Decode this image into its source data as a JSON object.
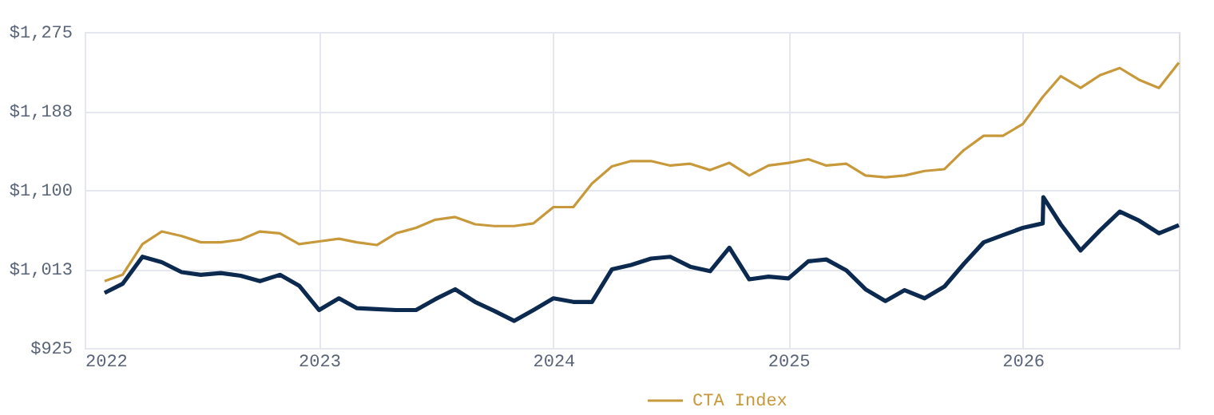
{
  "chart_data": {
    "type": "line",
    "xlim": [
      "2022",
      "2026-09"
    ],
    "xticks": [
      "2022",
      "2023",
      "2024",
      "2025",
      "2026"
    ],
    "ylim": [
      925,
      1275
    ],
    "yticks": [
      {
        "value": 925,
        "label": "$925"
      },
      {
        "value": 1012.5,
        "label": "$1,013"
      },
      {
        "value": 1100,
        "label": "$1,100"
      },
      {
        "value": 1187.5,
        "label": "$1,188"
      },
      {
        "value": 1275,
        "label": "$1,275"
      }
    ],
    "grid": true,
    "legend": "bottom",
    "line_style": "solid",
    "marker": "none",
    "series": [
      {
        "color": "#0c2a50",
        "x": [
          "2022-02",
          "2022-03",
          "2022-04",
          "2022-05",
          "2022-06",
          "2022-07",
          "2022-08",
          "2022-09",
          "2022-10",
          "2022-11",
          "2022-12",
          "2023-01",
          "2023-02",
          "2023-03",
          "2023-04",
          "2023-05",
          "2023-06",
          "2023-07",
          "2023-08",
          "2023-09",
          "2023-10",
          "2023-11",
          "2023-12",
          "2024-01",
          "2024-02",
          "2024-03",
          "2024-04",
          "2024-05",
          "2024-06",
          "2024-07",
          "2024-08",
          "2024-09",
          "2024-10",
          "2024-11",
          "2024-12",
          "2025-01",
          "2025-02",
          "2025-03",
          "2025-04",
          "2025-05",
          "2025-06",
          "2025-07",
          "2025-08",
          "2025-09",
          "2025-10",
          "2025-11",
          "2025-12",
          "2026-01",
          "2026-02",
          "2026-02-02",
          "2026-03",
          "2026-04",
          "2026-05",
          "2026-06",
          "2026-07",
          "2026-08",
          "2026-09"
        ],
        "values": [
          986,
          996,
          1026,
          1020,
          1009,
          1006,
          1008,
          1005,
          999,
          1006,
          994,
          967,
          980,
          969,
          968,
          967,
          967,
          979,
          990,
          976,
          966,
          955,
          967,
          980,
          976,
          976,
          1012,
          1017,
          1024,
          1026,
          1015,
          1010,
          1036,
          1001,
          1004,
          1002,
          1021,
          1023,
          1011,
          990,
          977,
          989,
          980,
          993,
          1018,
          1042,
          1050,
          1058,
          1063,
          1092,
          1062,
          1033,
          1055,
          1076,
          1066,
          1052,
          1061
        ]
      },
      {
        "name": "CTA Index",
        "color": "#c8993a",
        "x": [
          "2022-02",
          "2022-03",
          "2022-04",
          "2022-05",
          "2022-06",
          "2022-07",
          "2022-08",
          "2022-09",
          "2022-10",
          "2022-11",
          "2022-12",
          "2023-01",
          "2023-02",
          "2023-03",
          "2023-04",
          "2023-05",
          "2023-06",
          "2023-07",
          "2023-08",
          "2023-09",
          "2023-10",
          "2023-11",
          "2023-12",
          "2024-01",
          "2024-02",
          "2024-03",
          "2024-04",
          "2024-05",
          "2024-06",
          "2024-07",
          "2024-08",
          "2024-09",
          "2024-10",
          "2024-11",
          "2024-12",
          "2025-01",
          "2025-02",
          "2025-03",
          "2025-04",
          "2025-05",
          "2025-06",
          "2025-07",
          "2025-08",
          "2025-09",
          "2025-10",
          "2025-11",
          "2025-12",
          "2026-01",
          "2026-02",
          "2026-03",
          "2026-04",
          "2026-05",
          "2026-06",
          "2026-07",
          "2026-08",
          "2026-09"
        ],
        "values": [
          999,
          1006,
          1040,
          1054,
          1049,
          1042,
          1042,
          1045,
          1054,
          1052,
          1040,
          1043,
          1046,
          1042,
          1039,
          1052,
          1058,
          1067,
          1070,
          1062,
          1060,
          1060,
          1063,
          1081,
          1081,
          1107,
          1126,
          1132,
          1132,
          1127,
          1129,
          1122,
          1130,
          1116,
          1127,
          1130,
          1134,
          1127,
          1129,
          1116,
          1114,
          1116,
          1121,
          1123,
          1144,
          1160,
          1160,
          1173,
          1203,
          1226,
          1213,
          1227,
          1235,
          1222,
          1213,
          1241
        ]
      }
    ]
  }
}
